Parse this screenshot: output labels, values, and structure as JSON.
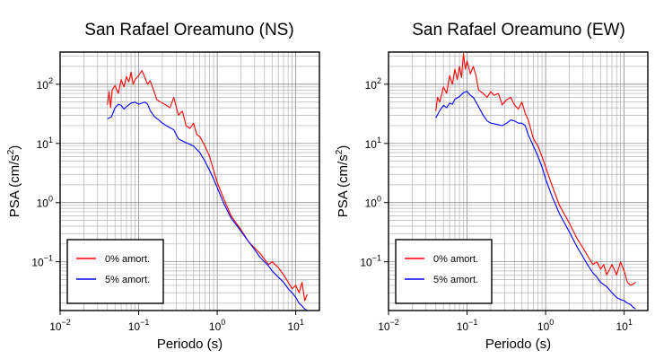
{
  "chart_data": [
    {
      "type": "line",
      "title": "San Rafael Oreamuno (NS)",
      "xlabel": "Periodo (s)",
      "ylabel_main": "PSA (cm/s",
      "ylabel_sup": "2",
      "ylabel_tail": ")",
      "xscale": "log",
      "yscale": "log",
      "xlim": [
        0.01,
        20
      ],
      "ylim": [
        0.015,
        350
      ],
      "grid": true,
      "legend_position": "bottom-left",
      "x_ticks": [
        {
          "value": 0.01,
          "base": "10",
          "exp": "−2"
        },
        {
          "value": 0.1,
          "base": "10",
          "exp": "−1"
        },
        {
          "value": 1,
          "base": "10",
          "exp": "0"
        },
        {
          "value": 10,
          "base": "10",
          "exp": "1"
        }
      ],
      "y_ticks": [
        {
          "value": 0.1,
          "base": "10",
          "exp": "−1"
        },
        {
          "value": 1,
          "base": "10",
          "exp": "0"
        },
        {
          "value": 10,
          "base": "10",
          "exp": "1"
        },
        {
          "value": 100,
          "base": "10",
          "exp": "2"
        }
      ],
      "series": [
        {
          "name": "0% amort.",
          "color": "#ff0000",
          "points": [
            [
              0.04,
              45
            ],
            [
              0.042,
              75
            ],
            [
              0.044,
              40
            ],
            [
              0.046,
              80
            ],
            [
              0.05,
              95
            ],
            [
              0.055,
              70
            ],
            [
              0.06,
              120
            ],
            [
              0.065,
              90
            ],
            [
              0.07,
              135
            ],
            [
              0.075,
              110
            ],
            [
              0.08,
              160
            ],
            [
              0.085,
              100
            ],
            [
              0.09,
              120
            ],
            [
              0.1,
              140
            ],
            [
              0.11,
              170
            ],
            [
              0.12,
              130
            ],
            [
              0.13,
              100
            ],
            [
              0.14,
              115
            ],
            [
              0.15,
              90
            ],
            [
              0.17,
              55
            ],
            [
              0.19,
              50
            ],
            [
              0.22,
              45
            ],
            [
              0.25,
              40
            ],
            [
              0.28,
              60
            ],
            [
              0.32,
              30
            ],
            [
              0.36,
              35
            ],
            [
              0.4,
              20
            ],
            [
              0.45,
              18
            ],
            [
              0.5,
              22
            ],
            [
              0.55,
              14
            ],
            [
              0.6,
              13
            ],
            [
              0.7,
              9
            ],
            [
              0.8,
              6
            ],
            [
              0.9,
              3.5
            ],
            [
              1.0,
              2.2
            ],
            [
              1.2,
              1.2
            ],
            [
              1.5,
              0.6
            ],
            [
              2.0,
              0.35
            ],
            [
              2.5,
              0.22
            ],
            [
              3.0,
              0.17
            ],
            [
              3.5,
              0.14
            ],
            [
              4.0,
              0.11
            ],
            [
              4.5,
              0.09
            ],
            [
              5.0,
              0.1
            ],
            [
              6.0,
              0.08
            ],
            [
              7.0,
              0.06
            ],
            [
              8.0,
              0.045
            ],
            [
              9.0,
              0.035
            ],
            [
              10.0,
              0.04
            ],
            [
              11.0,
              0.03
            ],
            [
              12.0,
              0.045
            ],
            [
              13.0,
              0.022
            ],
            [
              14.0,
              0.028
            ]
          ]
        },
        {
          "name": "5% amort.",
          "color": "#0000ff",
          "points": [
            [
              0.04,
              26
            ],
            [
              0.045,
              28
            ],
            [
              0.05,
              40
            ],
            [
              0.055,
              46
            ],
            [
              0.06,
              44
            ],
            [
              0.065,
              38
            ],
            [
              0.07,
              42
            ],
            [
              0.08,
              48
            ],
            [
              0.09,
              50
            ],
            [
              0.1,
              46
            ],
            [
              0.11,
              48
            ],
            [
              0.12,
              50
            ],
            [
              0.13,
              46
            ],
            [
              0.14,
              36
            ],
            [
              0.16,
              28
            ],
            [
              0.18,
              25
            ],
            [
              0.2,
              22
            ],
            [
              0.24,
              19
            ],
            [
              0.28,
              17
            ],
            [
              0.32,
              12
            ],
            [
              0.36,
              11
            ],
            [
              0.42,
              10
            ],
            [
              0.5,
              9
            ],
            [
              0.6,
              7
            ],
            [
              0.7,
              5
            ],
            [
              0.8,
              3.5
            ],
            [
              0.9,
              2.5
            ],
            [
              1.0,
              1.8
            ],
            [
              1.2,
              1.0
            ],
            [
              1.5,
              0.55
            ],
            [
              2.0,
              0.33
            ],
            [
              2.5,
              0.22
            ],
            [
              3.0,
              0.16
            ],
            [
              3.5,
              0.12
            ],
            [
              4.0,
              0.1
            ],
            [
              4.5,
              0.085
            ],
            [
              5.0,
              0.07
            ],
            [
              6.0,
              0.055
            ],
            [
              7.0,
              0.045
            ],
            [
              8.0,
              0.035
            ],
            [
              9.0,
              0.03
            ],
            [
              10.0,
              0.025
            ],
            [
              11.0,
              0.02
            ],
            [
              12.0,
              0.018
            ],
            [
              13.0,
              0.016
            ],
            [
              14.0,
              0.015
            ]
          ]
        }
      ]
    },
    {
      "type": "line",
      "title": "San Rafael Oreamuno (EW)",
      "xlabel": "Periodo (s)",
      "ylabel_main": "PSA (cm/s",
      "ylabel_sup": "2",
      "ylabel_tail": ")",
      "xscale": "log",
      "yscale": "log",
      "xlim": [
        0.01,
        20
      ],
      "ylim": [
        0.015,
        350
      ],
      "grid": true,
      "legend_position": "bottom-left",
      "x_ticks": [
        {
          "value": 0.01,
          "base": "10",
          "exp": "−2"
        },
        {
          "value": 0.1,
          "base": "10",
          "exp": "−1"
        },
        {
          "value": 1,
          "base": "10",
          "exp": "0"
        },
        {
          "value": 10,
          "base": "10",
          "exp": "1"
        }
      ],
      "y_ticks": [
        {
          "value": 0.1,
          "base": "10",
          "exp": "−1"
        },
        {
          "value": 1,
          "base": "10",
          "exp": "0"
        },
        {
          "value": 10,
          "base": "10",
          "exp": "1"
        },
        {
          "value": 100,
          "base": "10",
          "exp": "2"
        }
      ],
      "series": [
        {
          "name": "0% amort.",
          "color": "#ff0000",
          "points": [
            [
              0.04,
              35
            ],
            [
              0.042,
              60
            ],
            [
              0.045,
              50
            ],
            [
              0.05,
              90
            ],
            [
              0.055,
              70
            ],
            [
              0.06,
              140
            ],
            [
              0.065,
              100
            ],
            [
              0.07,
              180
            ],
            [
              0.075,
              120
            ],
            [
              0.08,
              200
            ],
            [
              0.085,
              130
            ],
            [
              0.09,
              330
            ],
            [
              0.095,
              180
            ],
            [
              0.1,
              250
            ],
            [
              0.11,
              150
            ],
            [
              0.12,
              200
            ],
            [
              0.13,
              140
            ],
            [
              0.14,
              80
            ],
            [
              0.16,
              70
            ],
            [
              0.18,
              60
            ],
            [
              0.2,
              75
            ],
            [
              0.22,
              65
            ],
            [
              0.25,
              70
            ],
            [
              0.28,
              45
            ],
            [
              0.32,
              55
            ],
            [
              0.36,
              60
            ],
            [
              0.4,
              45
            ],
            [
              0.45,
              38
            ],
            [
              0.5,
              50
            ],
            [
              0.55,
              32
            ],
            [
              0.6,
              25
            ],
            [
              0.7,
              12
            ],
            [
              0.8,
              9
            ],
            [
              0.9,
              6
            ],
            [
              1.0,
              4
            ],
            [
              1.2,
              2
            ],
            [
              1.5,
              0.9
            ],
            [
              2.0,
              0.45
            ],
            [
              2.5,
              0.25
            ],
            [
              3.0,
              0.17
            ],
            [
              3.5,
              0.12
            ],
            [
              4.0,
              0.09
            ],
            [
              4.5,
              0.1
            ],
            [
              5.0,
              0.075
            ],
            [
              5.5,
              0.09
            ],
            [
              6.0,
              0.06
            ],
            [
              7.0,
              0.09
            ],
            [
              8.0,
              0.06
            ],
            [
              9.0,
              0.1
            ],
            [
              10.0,
              0.07
            ],
            [
              11.0,
              0.045
            ],
            [
              12.0,
              0.04
            ],
            [
              13.0,
              0.042
            ],
            [
              14.0,
              0.045
            ]
          ]
        },
        {
          "name": "5% amort.",
          "color": "#0000ff",
          "points": [
            [
              0.04,
              27
            ],
            [
              0.045,
              36
            ],
            [
              0.05,
              44
            ],
            [
              0.055,
              40
            ],
            [
              0.06,
              48
            ],
            [
              0.065,
              46
            ],
            [
              0.07,
              56
            ],
            [
              0.08,
              62
            ],
            [
              0.09,
              72
            ],
            [
              0.1,
              76
            ],
            [
              0.11,
              65
            ],
            [
              0.12,
              60
            ],
            [
              0.14,
              42
            ],
            [
              0.16,
              30
            ],
            [
              0.18,
              24
            ],
            [
              0.2,
              22
            ],
            [
              0.24,
              21
            ],
            [
              0.28,
              20
            ],
            [
              0.32,
              22
            ],
            [
              0.36,
              25
            ],
            [
              0.4,
              24
            ],
            [
              0.45,
              22
            ],
            [
              0.5,
              22
            ],
            [
              0.55,
              20
            ],
            [
              0.6,
              14
            ],
            [
              0.7,
              9
            ],
            [
              0.8,
              6
            ],
            [
              0.9,
              4
            ],
            [
              1.0,
              2.5
            ],
            [
              1.2,
              1.3
            ],
            [
              1.5,
              0.65
            ],
            [
              2.0,
              0.32
            ],
            [
              2.5,
              0.18
            ],
            [
              3.0,
              0.12
            ],
            [
              3.5,
              0.085
            ],
            [
              4.0,
              0.065
            ],
            [
              4.5,
              0.055
            ],
            [
              5.0,
              0.045
            ],
            [
              6.0,
              0.038
            ],
            [
              7.0,
              0.03
            ],
            [
              8.0,
              0.025
            ],
            [
              9.0,
              0.023
            ],
            [
              10.0,
              0.022
            ],
            [
              11.0,
              0.02
            ],
            [
              12.0,
              0.019
            ],
            [
              13.0,
              0.017
            ],
            [
              14.0,
              0.016
            ]
          ]
        }
      ]
    }
  ]
}
